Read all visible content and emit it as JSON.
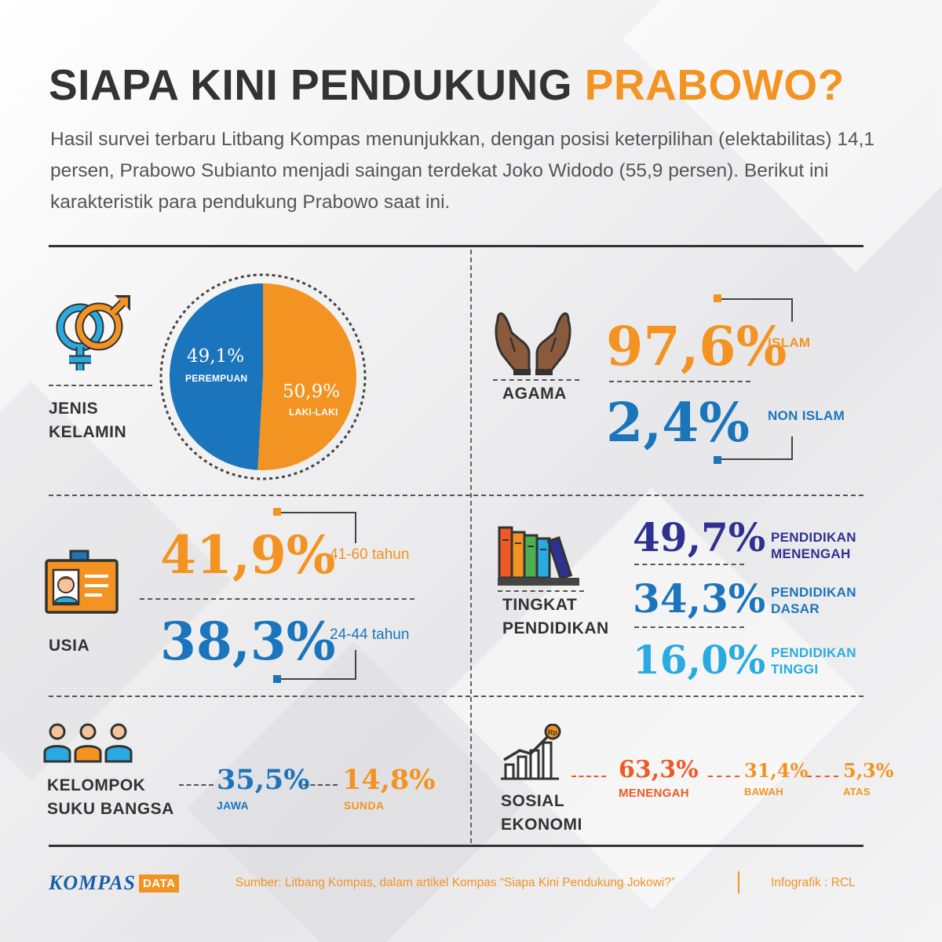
{
  "header": {
    "title_main": "SIAPA KINI PENDUKUNG ",
    "title_highlight": "PRABOWO?",
    "lead": "Hasil survei terbaru Litbang Kompas menunjukkan, dengan posisi keterpilihan (elektabilitas) 14,1 persen, Prabowo Subianto menjadi saingan terdekat Joko Widodo (55,9 persen). Berikut ini karakteristik para pendukung Prabowo saat ini."
  },
  "gender": {
    "label_line1": "JENIS",
    "label_line2": "KELAMIN",
    "icon": "gender-symbols-icon",
    "female_value": "49,1%",
    "female_label": "PEREMPUAN",
    "male_value": "50,9%",
    "male_label": "LAKI-LAKI"
  },
  "religion": {
    "label": "AGAMA",
    "icon": "praying-hands-icon",
    "islam_value": "97,6%",
    "islam_label": "ISLAM",
    "non_islam_value": "2,4%",
    "non_islam_label": "NON ISLAM"
  },
  "age": {
    "label": "USIA",
    "icon": "id-card-icon",
    "a_value": "41,9%",
    "a_label": "41-60 tahun",
    "b_value": "38,3%",
    "b_label": "24-44 tahun"
  },
  "education": {
    "label_line1": "TINGKAT",
    "label_line2": "PENDIDIKAN",
    "icon": "books-icon",
    "menengah_value": "49,7%",
    "menengah_label1": "PENDIDIKAN",
    "menengah_label2": "MENENGAH",
    "dasar_value": "34,3%",
    "dasar_label1": "PENDIDIKAN",
    "dasar_label2": "DASAR",
    "tinggi_value": "16,0%",
    "tinggi_label1": "PENDIDIKAN",
    "tinggi_label2": "TINGGI"
  },
  "ethnic": {
    "label_line1": "KELOMPOK",
    "label_line2": "SUKU BANGSA",
    "icon": "people-group-icon",
    "jawa_value": "35,5%",
    "jawa_label": "JAWA",
    "sunda_value": "14,8%",
    "sunda_label": "SUNDA"
  },
  "socio": {
    "label_line1": "SOSIAL",
    "label_line2": "EKONOMI",
    "icon": "growth-chart-icon",
    "coin_text": "Rp",
    "menengah_value": "63,3%",
    "menengah_label": "MENENGAH",
    "bawah_value": "31,4%",
    "bawah_label": "BAWAH",
    "atas_value": "5,3%",
    "atas_label": "ATAS"
  },
  "footer": {
    "logo_text": "KOMPAS",
    "logo_badge": "DATA",
    "source": "Sumber: Litbang Kompas, dalam artikel Kompas “Siapa Kini Pendukung Jokowi?”",
    "credit": "Infografik : RCL"
  },
  "colors": {
    "orange": "#f39322",
    "blue": "#1b75bc",
    "navy": "#2e3192",
    "light_blue": "#29abe2",
    "red_orange": "#ee5a24",
    "dark_text": "#333333"
  },
  "chart_data": [
    {
      "type": "pie",
      "categories": [
        "PEREMPUAN",
        "LAKI-LAKI"
      ],
      "values": [
        49.1,
        50.9
      ],
      "colors": [
        "#1b75bc",
        "#f39322"
      ]
    },
    {
      "type": "table",
      "categories": [
        "ISLAM",
        "NON ISLAM"
      ],
      "values": [
        97.6,
        2.4
      ]
    },
    {
      "type": "table",
      "categories": [
        "41-60 tahun",
        "24-44 tahun"
      ],
      "values": [
        41.9,
        38.3
      ]
    },
    {
      "type": "table",
      "categories": [
        "PENDIDIKAN MENENGAH",
        "PENDIDIKAN DASAR",
        "PENDIDIKAN TINGGI"
      ],
      "values": [
        49.7,
        34.3,
        16.0
      ]
    },
    {
      "type": "table",
      "categories": [
        "JAWA",
        "SUNDA"
      ],
      "values": [
        35.5,
        14.8
      ]
    },
    {
      "type": "table",
      "categories": [
        "MENENGAH",
        "BAWAH",
        "ATAS"
      ],
      "values": [
        63.3,
        31.4,
        5.3
      ]
    }
  ]
}
